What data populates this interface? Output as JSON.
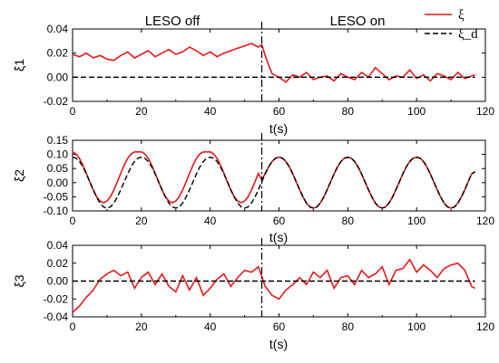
{
  "chart_data": {
    "type": "line",
    "x_label": "t(s)",
    "switch_time": 55,
    "annotations": {
      "left": "LESO off",
      "right": "LESO on"
    },
    "legend": [
      {
        "label": "ξ",
        "color": "#e31a1c",
        "dash": "solid"
      },
      {
        "label": "ξ_d",
        "color": "#000000",
        "dash": "dashed"
      }
    ],
    "colors": {
      "actual": "#e31a1c",
      "desired": "#000000"
    },
    "subplots": [
      {
        "id": "xi1",
        "ylabel": "ξ1",
        "xlim": [
          0,
          120
        ],
        "ylim": [
          -0.02,
          0.04
        ],
        "xticks": [
          "0",
          "20",
          "40",
          "60",
          "80",
          "100",
          "120"
        ],
        "yticks": [
          "-0.02",
          "0.00",
          "0.02",
          "0.04"
        ],
        "series": [
          {
            "role": "actual",
            "x": [
              0,
              2,
              4,
              6,
              8,
              10,
              12,
              14,
              16,
              18,
              20,
              22,
              24,
              26,
              28,
              30,
              32,
              34,
              36,
              38,
              40,
              42,
              44,
              46,
              48,
              50,
              52,
              54,
              55,
              56,
              57,
              58,
              60,
              62,
              64,
              66,
              68,
              70,
              72,
              74,
              76,
              78,
              80,
              82,
              84,
              86,
              88,
              90,
              92,
              94,
              96,
              98,
              100,
              102,
              104,
              106,
              108,
              110,
              112,
              114,
              116,
              117
            ],
            "y": [
              0.019,
              0.017,
              0.02,
              0.016,
              0.018,
              0.015,
              0.014,
              0.018,
              0.021,
              0.016,
              0.019,
              0.022,
              0.017,
              0.02,
              0.023,
              0.019,
              0.021,
              0.025,
              0.022,
              0.018,
              0.021,
              0.017,
              0.02,
              0.022,
              0.024,
              0.026,
              0.028,
              0.025,
              0.027,
              0.018,
              0.01,
              0.003,
              0.0,
              -0.004,
              0.002,
              0.0,
              0.004,
              -0.002,
              0.0,
              0.001,
              -0.003,
              0.003,
              0.0,
              -0.002,
              0.004,
              0.0,
              0.008,
              0.003,
              -0.002,
              0.001,
              0.0,
              0.006,
              -0.001,
              0.002,
              -0.003,
              0.003,
              0.001,
              -0.002,
              0.004,
              -0.001,
              0.001,
              0.002
            ]
          },
          {
            "role": "desired",
            "x": [
              0,
              117
            ],
            "y": [
              0.0,
              0.0
            ]
          }
        ]
      },
      {
        "id": "xi2",
        "ylabel": "ξ2",
        "xlim": [
          0,
          120
        ],
        "ylim": [
          -0.1,
          0.15
        ],
        "xticks": [
          "0",
          "20",
          "40",
          "60",
          "80",
          "100",
          "120"
        ],
        "yticks": [
          "-0.10",
          "-0.05",
          "0.00",
          "0.05",
          "0.10",
          "0.15"
        ],
        "series": [
          {
            "role": "actual",
            "x": [
              0,
              1,
              2,
              3,
              4,
              5,
              6,
              7,
              8,
              9,
              10,
              11,
              12,
              13,
              14,
              15,
              16,
              17,
              18,
              19,
              20,
              21,
              22,
              23,
              24,
              25,
              26,
              27,
              28,
              29,
              30,
              31,
              32,
              33,
              34,
              35,
              36,
              37,
              38,
              39,
              40,
              41,
              42,
              43,
              44,
              45,
              46,
              47,
              48,
              49,
              50,
              51,
              52,
              53,
              54,
              55,
              56,
              57,
              58,
              59,
              60,
              61,
              62,
              63,
              64,
              65,
              66,
              67,
              68,
              69,
              70,
              71,
              72,
              73,
              74,
              75,
              76,
              77,
              78,
              79,
              80,
              81,
              82,
              83,
              84,
              85,
              86,
              87,
              88,
              89,
              90,
              91,
              92,
              93,
              94,
              95,
              96,
              97,
              98,
              99,
              100,
              101,
              102,
              103,
              104,
              105,
              106,
              107,
              108,
              109,
              110,
              111,
              112,
              113,
              114,
              115,
              116,
              117
            ],
            "y": [
              0.109,
              0.102,
              0.086,
              0.062,
              0.033,
              0.003,
              -0.026,
              -0.05,
              -0.065,
              -0.071,
              -0.065,
              -0.05,
              -0.026,
              0.003,
              0.033,
              0.062,
              0.086,
              0.102,
              0.109,
              0.109,
              0.109,
              0.102,
              0.086,
              0.062,
              0.033,
              0.003,
              -0.026,
              -0.05,
              -0.065,
              -0.071,
              -0.065,
              -0.05,
              -0.026,
              0.003,
              0.033,
              0.062,
              0.086,
              0.102,
              0.109,
              0.109,
              0.109,
              0.102,
              0.086,
              0.062,
              0.033,
              0.003,
              -0.026,
              -0.05,
              -0.065,
              -0.071,
              -0.065,
              -0.05,
              -0.026,
              0.003,
              0.033,
              0.01,
              0.033,
              0.056,
              0.075,
              0.087,
              0.09,
              0.087,
              0.075,
              0.056,
              0.031,
              0.003,
              -0.025,
              -0.051,
              -0.072,
              -0.086,
              -0.09,
              -0.086,
              -0.072,
              -0.051,
              -0.025,
              0.003,
              0.031,
              0.056,
              0.075,
              0.087,
              0.09,
              0.087,
              0.075,
              0.056,
              0.031,
              0.003,
              -0.025,
              -0.051,
              -0.072,
              -0.086,
              -0.09,
              -0.086,
              -0.072,
              -0.051,
              -0.025,
              0.003,
              0.031,
              0.056,
              0.075,
              0.087,
              0.09,
              0.087,
              0.075,
              0.056,
              0.031,
              0.003,
              -0.025,
              -0.051,
              -0.072,
              -0.086,
              -0.09,
              -0.086,
              -0.072,
              -0.051,
              -0.025,
              0.003,
              0.031,
              0.038
            ]
          },
          {
            "role": "desired",
            "x": [
              0,
              1,
              2,
              3,
              4,
              5,
              6,
              7,
              8,
              9,
              10,
              11,
              12,
              13,
              14,
              15,
              16,
              17,
              18,
              19,
              20,
              21,
              22,
              23,
              24,
              25,
              26,
              27,
              28,
              29,
              30,
              31,
              32,
              33,
              34,
              35,
              36,
              37,
              38,
              39,
              40,
              41,
              42,
              43,
              44,
              45,
              46,
              47,
              48,
              49,
              50,
              51,
              52,
              53,
              54,
              55,
              56,
              57,
              58,
              59,
              60,
              61,
              62,
              63,
              64,
              65,
              66,
              67,
              68,
              69,
              70,
              71,
              72,
              73,
              74,
              75,
              76,
              77,
              78,
              79,
              80,
              81,
              82,
              83,
              84,
              85,
              86,
              87,
              88,
              89,
              90,
              91,
              92,
              93,
              94,
              95,
              96,
              97,
              98,
              99,
              100,
              101,
              102,
              103,
              104,
              105,
              106,
              107,
              108,
              109,
              110,
              111,
              112,
              113,
              114,
              115,
              116,
              117
            ],
            "y": [
              0.09,
              0.087,
              0.075,
              0.056,
              0.031,
              0.003,
              -0.025,
              -0.051,
              -0.072,
              -0.086,
              -0.09,
              -0.086,
              -0.072,
              -0.051,
              -0.025,
              0.003,
              0.031,
              0.056,
              0.075,
              0.087,
              0.09,
              0.087,
              0.075,
              0.056,
              0.031,
              0.003,
              -0.025,
              -0.051,
              -0.072,
              -0.086,
              -0.09,
              -0.086,
              -0.072,
              -0.051,
              -0.025,
              0.003,
              0.031,
              0.056,
              0.075,
              0.087,
              0.09,
              0.087,
              0.075,
              0.056,
              0.031,
              0.003,
              -0.025,
              -0.051,
              -0.072,
              -0.086,
              -0.09,
              -0.086,
              -0.072,
              -0.051,
              -0.025,
              0.003,
              0.031,
              0.056,
              0.075,
              0.087,
              0.09,
              0.087,
              0.075,
              0.056,
              0.031,
              0.003,
              -0.025,
              -0.051,
              -0.072,
              -0.086,
              -0.09,
              -0.086,
              -0.072,
              -0.051,
              -0.025,
              0.003,
              0.031,
              0.056,
              0.075,
              0.087,
              0.09,
              0.087,
              0.075,
              0.056,
              0.031,
              0.003,
              -0.025,
              -0.051,
              -0.072,
              -0.086,
              -0.09,
              -0.086,
              -0.072,
              -0.051,
              -0.025,
              0.003,
              0.031,
              0.056,
              0.075,
              0.087,
              0.09,
              0.087,
              0.075,
              0.056,
              0.031,
              0.003,
              -0.025,
              -0.051,
              -0.072,
              -0.086,
              -0.09,
              -0.086,
              -0.072,
              -0.051,
              -0.025,
              0.003,
              0.031,
              0.038
            ]
          }
        ]
      },
      {
        "id": "xi3",
        "ylabel": "ξ3",
        "xlim": [
          0,
          120
        ],
        "ylim": [
          -0.04,
          0.04
        ],
        "xticks": [
          "0",
          "20",
          "40",
          "60",
          "80",
          "100",
          "120"
        ],
        "yticks": [
          "-0.04",
          "-0.02",
          "0.00",
          "0.02",
          "0.04"
        ],
        "series": [
          {
            "role": "actual",
            "x": [
              0,
              2,
              4,
              6,
              8,
              10,
              12,
              14,
              16,
              18,
              20,
              22,
              24,
              26,
              28,
              30,
              32,
              34,
              36,
              38,
              40,
              42,
              44,
              46,
              48,
              50,
              52,
              54,
              56,
              58,
              60,
              62,
              64,
              66,
              68,
              70,
              72,
              74,
              76,
              78,
              80,
              82,
              84,
              86,
              88,
              90,
              92,
              94,
              96,
              98,
              100,
              102,
              104,
              106,
              108,
              110,
              112,
              114,
              116,
              117
            ],
            "y": [
              -0.035,
              -0.028,
              -0.018,
              -0.01,
              0.002,
              0.008,
              0.012,
              0.006,
              0.01,
              -0.008,
              0.004,
              0.01,
              -0.004,
              0.008,
              -0.006,
              -0.012,
              0.006,
              -0.01,
              0.004,
              -0.016,
              -0.008,
              0.002,
              0.008,
              -0.006,
              0.004,
              0.012,
              0.01,
              0.016,
              -0.006,
              -0.016,
              -0.02,
              -0.01,
              -0.004,
              0.004,
              -0.004,
              0.01,
              0.004,
              0.012,
              -0.008,
              0.004,
              0.006,
              -0.004,
              0.012,
              0.004,
              0.008,
              0.016,
              -0.004,
              0.012,
              0.014,
              0.024,
              0.01,
              0.018,
              0.012,
              0.004,
              0.014,
              0.018,
              0.02,
              0.012,
              -0.006,
              -0.008
            ]
          },
          {
            "role": "desired",
            "x": [
              0,
              117
            ],
            "y": [
              0.0,
              0.0
            ]
          }
        ]
      }
    ]
  }
}
